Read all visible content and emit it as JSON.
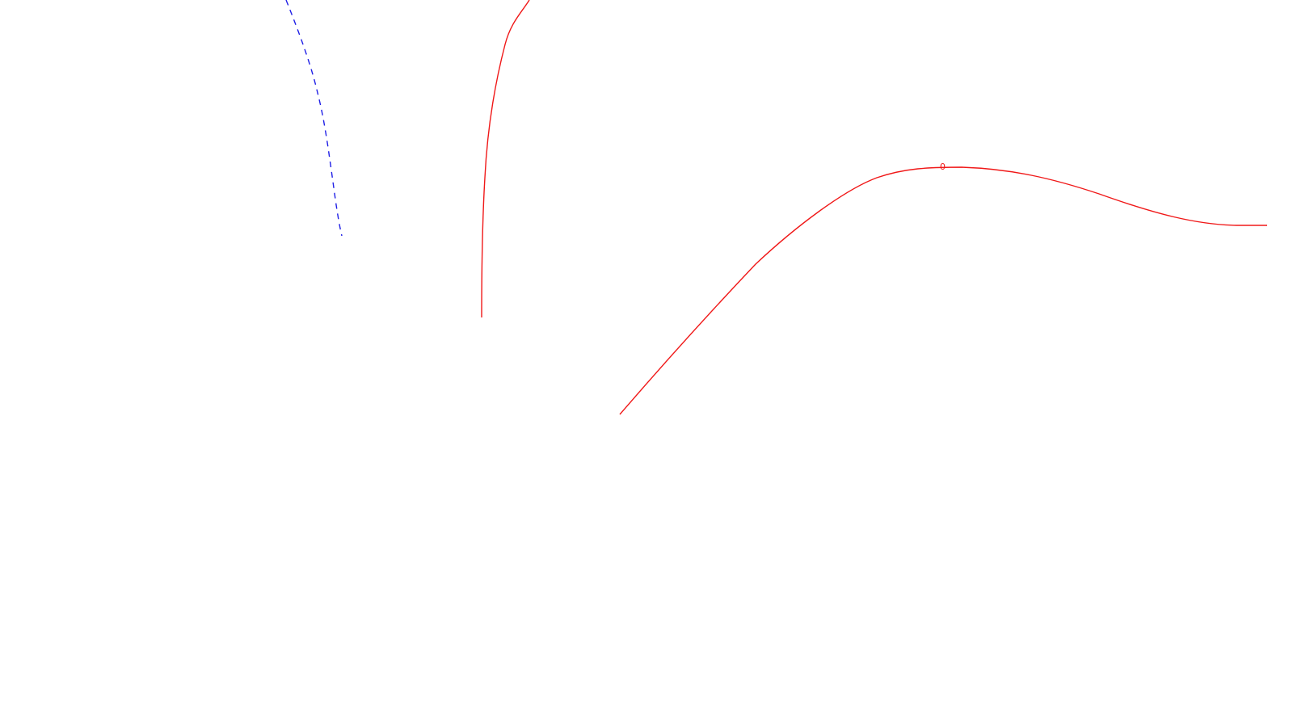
{
  "background": "#ffffff",
  "curves": [
    {
      "id": "dashed-blue-curve",
      "color": "#1f1fe6",
      "style": "dashed"
    },
    {
      "id": "red-steep-curve",
      "color": "#f01818",
      "style": "solid"
    },
    {
      "id": "red-wave-curve",
      "color": "#f01818",
      "style": "solid"
    }
  ],
  "labels": {
    "peak_label": "0",
    "peak_label_color": "#f01818"
  }
}
